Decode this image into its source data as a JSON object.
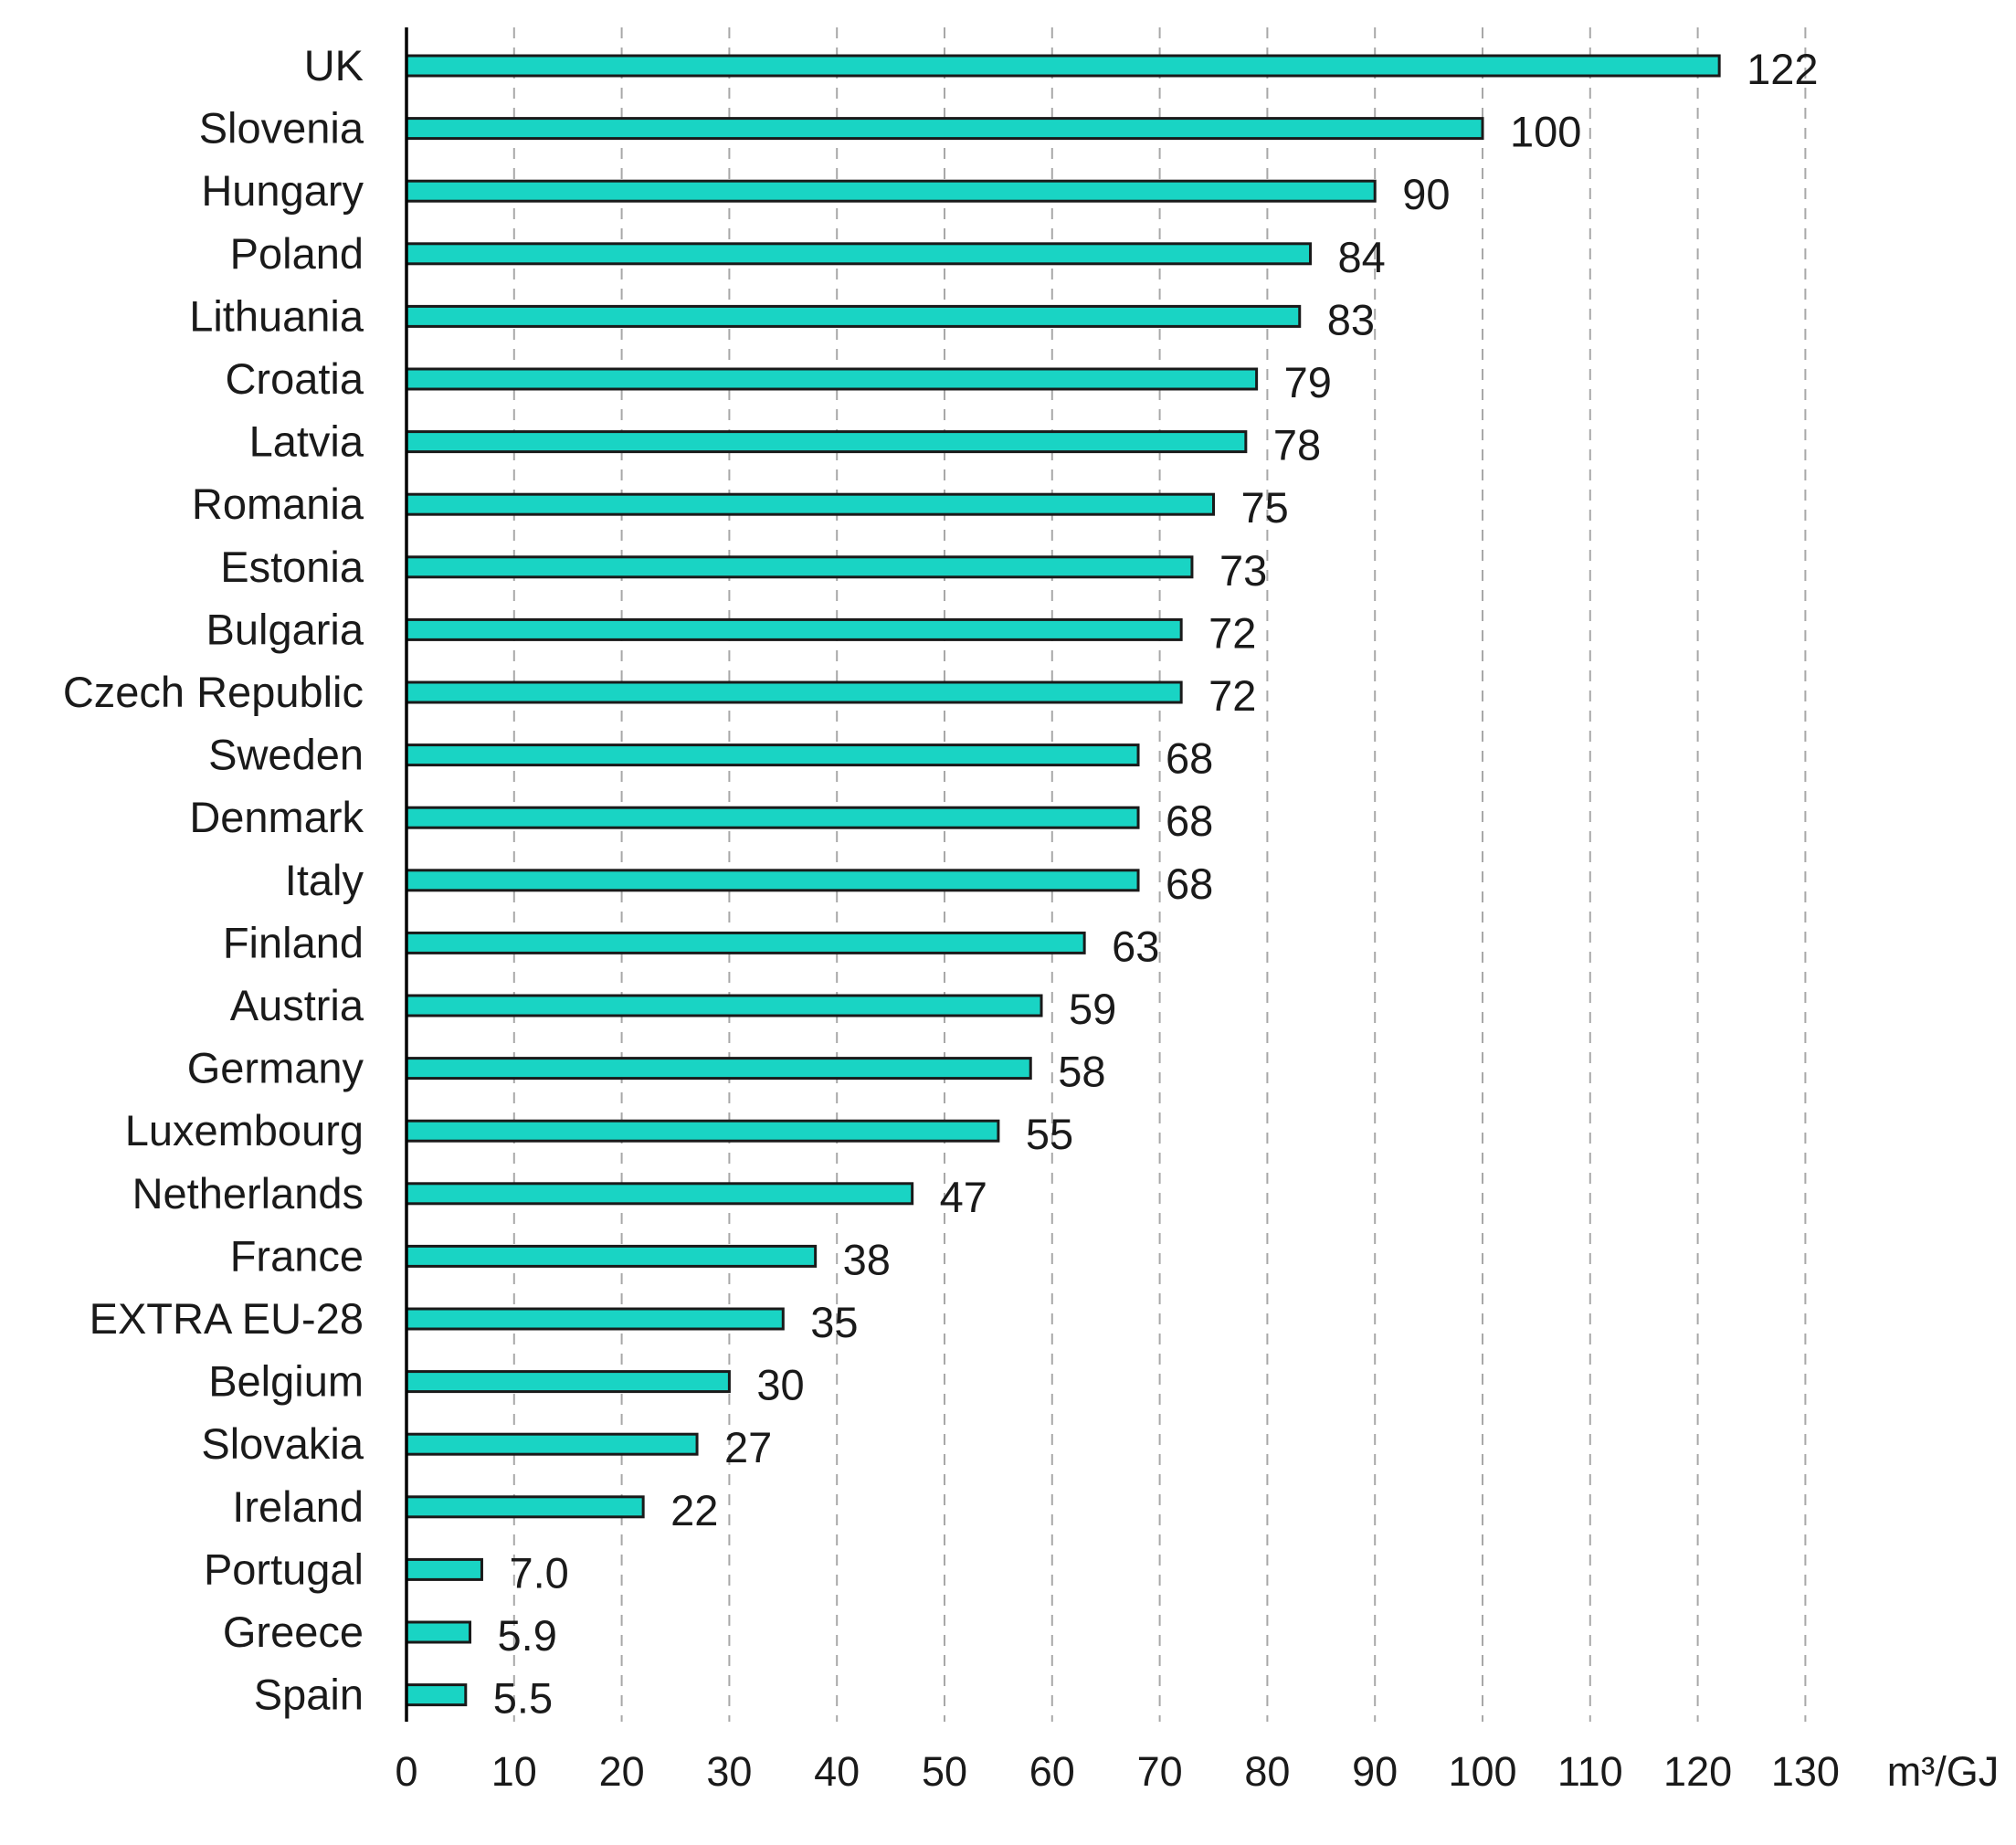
{
  "chart_data": {
    "type": "bar",
    "orientation": "horizontal",
    "title": "",
    "xlabel": "m³/GJ",
    "ylabel": "",
    "xlim": [
      0,
      130
    ],
    "xticks": [
      0,
      10,
      20,
      30,
      40,
      50,
      60,
      70,
      80,
      90,
      100,
      110,
      120,
      130
    ],
    "grid": "vertical-dashed",
    "bar_color": "#19d4c4",
    "categories": [
      "UK",
      "Slovenia",
      "Hungary",
      "Poland",
      "Lithuania",
      "Croatia",
      "Latvia",
      "Romania",
      "Estonia",
      "Bulgaria",
      "Czech Republic",
      "Sweden",
      "Denmark",
      "Italy",
      "Finland",
      "Austria",
      "Germany",
      "Luxembourg",
      "Netherlands",
      "France",
      "EXTRA EU-28",
      "Belgium",
      "Slovakia",
      "Ireland",
      "Portugal",
      "Greece",
      "Spain"
    ],
    "values": [
      122,
      100,
      90,
      84,
      83,
      79,
      78,
      75,
      73,
      72,
      72,
      68,
      68,
      68,
      63,
      59,
      58,
      55,
      47,
      38,
      35,
      30,
      27,
      22,
      7.0,
      5.9,
      5.5
    ],
    "value_labels": [
      "122",
      "100",
      "90",
      "84",
      "83",
      "79",
      "78",
      "75",
      "73",
      "72",
      "72",
      "68",
      "68",
      "68",
      "63",
      "59",
      "58",
      "55",
      "47",
      "38",
      "35",
      "30",
      "27",
      "22",
      "7.0",
      "5.9",
      "5.5"
    ]
  }
}
